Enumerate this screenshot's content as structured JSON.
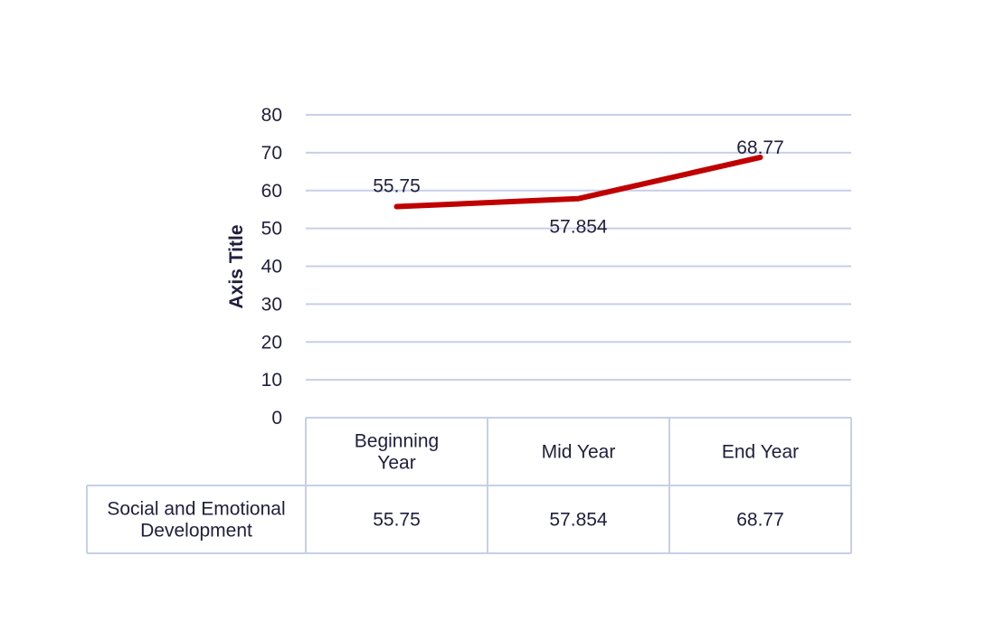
{
  "chart_data": {
    "type": "line",
    "title": "",
    "xlabel": "",
    "ylabel": "Axis Title",
    "ylim": [
      0,
      80
    ],
    "yticks": [
      0,
      10,
      20,
      30,
      40,
      50,
      60,
      70,
      80
    ],
    "grid": true,
    "categories": [
      "Beginning Year",
      "Mid Year",
      "End Year"
    ],
    "series": [
      {
        "name": "Social and Emotional Development",
        "values": [
          55.75,
          57.854,
          68.77
        ],
        "labels": [
          "55.75",
          "57.854",
          "68.77"
        ]
      }
    ],
    "data_table": true
  },
  "colors": {
    "line": "#c00000",
    "grid": "#c7cfe8",
    "text": "#1f1f3d"
  }
}
